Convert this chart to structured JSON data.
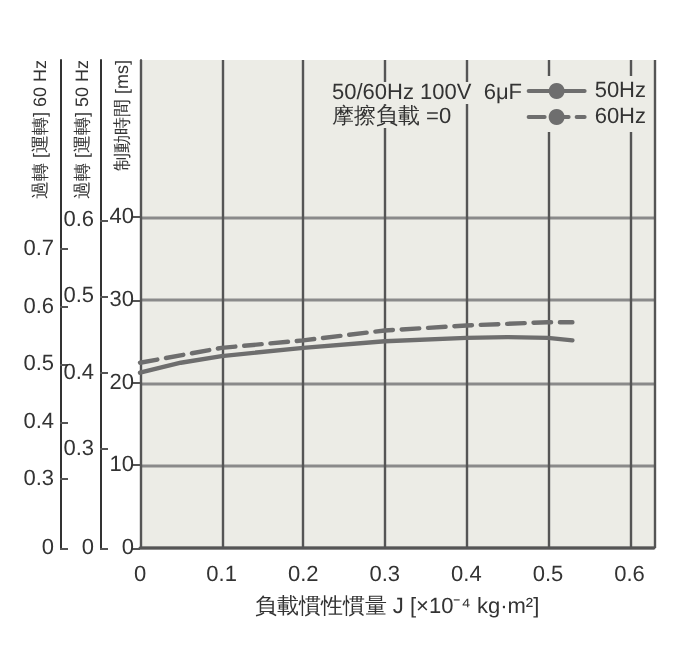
{
  "chart_data": {
    "type": "line",
    "xlabel": "負載慣性慣量 J [×10⁻⁴ kg·m²]",
    "ylabel": "制動時間 [ms]",
    "y2label": "過轉 [運轉] 60 Hz",
    "y3label": "過轉 [運轉] 50 Hz",
    "annotations": [
      "50/60Hz 100V  6μF",
      "摩擦負載 =0"
    ],
    "xlim": [
      0,
      0.63
    ],
    "xticks": [
      0,
      0.1,
      0.2,
      0.3,
      0.4,
      0.5,
      0.6
    ],
    "ylim": [
      0,
      59
    ],
    "yticks": [
      0,
      10,
      20,
      30,
      40
    ],
    "y2lim": [
      0.18,
      1.03
    ],
    "y2ticks": [
      {
        "value": 0.18,
        "label": "0"
      },
      0.3,
      0.4,
      0.5,
      0.6,
      0.7
    ],
    "y3lim": [
      0.17,
      0.81
    ],
    "y3ticks": [
      {
        "value": 0.17,
        "label": "0"
      },
      0.3,
      0.4,
      0.5,
      0.6
    ],
    "grid": true,
    "legend": "top right",
    "marker": "none",
    "series": [
      {
        "name": "50Hz",
        "color": "#6e6e6e",
        "line_style": "solid",
        "x": [
          0,
          0.05,
          0.1,
          0.2,
          0.3,
          0.4,
          0.45,
          0.5,
          0.53
        ],
        "values": [
          21.2,
          22.4,
          23.2,
          24.2,
          25.0,
          25.4,
          25.5,
          25.4,
          25.1
        ]
      },
      {
        "name": "60Hz",
        "color": "#6e6e6e",
        "line_style": "dashed",
        "x": [
          0,
          0.1,
          0.2,
          0.3,
          0.4,
          0.5,
          0.53
        ],
        "values": [
          22.4,
          24.2,
          25.1,
          26.3,
          26.9,
          27.3,
          27.3
        ]
      }
    ]
  }
}
